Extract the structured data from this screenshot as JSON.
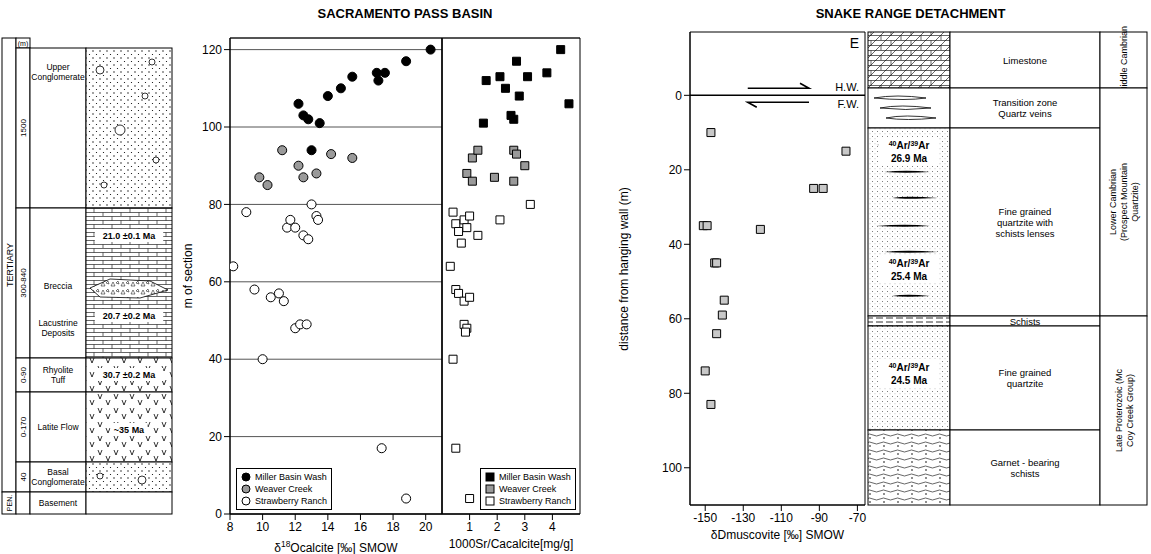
{
  "titles": {
    "left": "SACRAMENTO PASS BASIN",
    "right": "SNAKE RANGE DETACHMENT"
  },
  "stratigraphic_column": {
    "unit_label": "(m)",
    "eras": [
      "TERTIARY",
      "PEN."
    ],
    "units": [
      {
        "thickness": "1500",
        "name": "Upper Conglomerate"
      },
      {
        "thickness": "300-840",
        "name": "Lacustrine Deposits",
        "sub_units": [
          "Breccia"
        ],
        "ages": [
          "21.0 ±0.1 Ma",
          "20.7 ±0.2 Ma"
        ]
      },
      {
        "thickness": "0-90",
        "name": "Rhyolite Tuff",
        "ages": [
          "30.7 ±0.2 Ma"
        ]
      },
      {
        "thickness": "0-170",
        "name": "Latite Flow",
        "ages": [
          "~35 Ma"
        ]
      },
      {
        "thickness": "40",
        "name": "Basal Conglomerate"
      },
      {
        "name": "Basement"
      }
    ]
  },
  "chart_data": [
    {
      "type": "scatter",
      "xlabel": "δ18Ocalcite [‰] SMOW",
      "ylabel": "m of section",
      "xlim": [
        8,
        21
      ],
      "xticks": [
        8,
        10,
        12,
        14,
        16,
        18,
        20
      ],
      "ylim": [
        0,
        123
      ],
      "yticks": [
        0,
        20,
        40,
        60,
        80,
        100,
        120
      ],
      "grid": true,
      "legend": "lower left",
      "series": [
        {
          "name": "Miller Basin Wash",
          "color": "#000000",
          "marker": "circle",
          "x": [
            12.2,
            12.5,
            12.8,
            13.5,
            13.0,
            14.0,
            14.8,
            15.5,
            17.0,
            17.1,
            17.5,
            18.8,
            20.3
          ],
          "y": [
            106,
            103,
            102,
            101,
            94,
            108,
            110,
            113,
            114,
            112,
            114,
            117,
            120
          ]
        },
        {
          "name": "Weaver Creek",
          "color": "#9a9a9a",
          "marker": "circle",
          "x": [
            9.8,
            10.3,
            11.2,
            12.2,
            12.5,
            13.3,
            14.2,
            15.5
          ],
          "y": [
            87,
            85,
            94,
            90,
            87,
            88,
            93,
            92
          ]
        },
        {
          "name": "Strawberry Ranch",
          "color": "#ffffff",
          "marker": "circle",
          "x": [
            8.2,
            9.0,
            9.5,
            10.0,
            10.5,
            11.0,
            11.3,
            11.5,
            11.7,
            12.0,
            12.0,
            12.3,
            12.5,
            12.7,
            12.8,
            13.0,
            13.3,
            13.4,
            17.3,
            18.8
          ],
          "y": [
            64,
            78,
            58,
            40,
            56,
            57,
            55,
            74,
            76,
            74,
            48,
            49,
            72,
            49,
            71,
            80,
            77,
            76,
            17,
            4
          ]
        }
      ]
    },
    {
      "type": "scatter",
      "xlabel": "1000Sr/Cacalcite[mg/g]",
      "xlim": [
        0,
        5
      ],
      "xticks": [
        1,
        2,
        3,
        4
      ],
      "ylim": [
        0,
        123
      ],
      "yticks": [
        0,
        20,
        40,
        60,
        80,
        100,
        120
      ],
      "grid": true,
      "legend": "lower right",
      "tick_labels": "x",
      "series": [
        {
          "name": "Miller Basin Wash",
          "color": "#000000",
          "marker": "square",
          "x": [
            1.5,
            1.6,
            2.1,
            2.3,
            2.5,
            2.6,
            2.7,
            2.8,
            3.1,
            3.8,
            4.3,
            4.6
          ],
          "y": [
            101,
            112,
            113,
            110,
            103,
            102,
            117,
            108,
            113,
            114,
            120,
            106
          ]
        },
        {
          "name": "Weaver Creek",
          "color": "#9a9a9a",
          "marker": "square",
          "x": [
            0.9,
            1.1,
            1.1,
            1.3,
            1.9,
            2.6,
            2.6,
            2.7,
            3.0
          ],
          "y": [
            88,
            92,
            86,
            94,
            87,
            86,
            94,
            93,
            90
          ]
        },
        {
          "name": "Strawberry Ranch",
          "color": "#ffffff",
          "marker": "square",
          "x": [
            0.3,
            0.4,
            0.5,
            0.6,
            0.7,
            0.8,
            0.9,
            1.0,
            1.3,
            2.1,
            3.2,
            0.5,
            0.6,
            0.8,
            1.0,
            0.8,
            0.9,
            0.85,
            0.4,
            0.5,
            1.0
          ],
          "y": [
            64,
            78,
            75,
            73,
            70,
            76,
            74,
            77,
            72,
            76,
            80,
            58,
            57,
            55,
            56,
            49,
            48,
            47,
            40,
            17,
            4
          ]
        }
      ]
    },
    {
      "type": "scatter",
      "xlabel": "δDmuscovite [‰] SMOW",
      "ylabel": "distance from hanging wall (m)",
      "xlim": [
        -158,
        -66
      ],
      "xticks": [
        -150,
        -130,
        -110,
        -90,
        -70
      ],
      "ylim": [
        110,
        -17
      ],
      "yticks": [
        0,
        20,
        40,
        60,
        80,
        100
      ],
      "grid": false,
      "annotations": [
        {
          "text": "E"
        },
        {
          "text": "H.W.",
          "y": 0
        },
        {
          "text": "F.W.",
          "y": 0
        }
      ],
      "series": [
        {
          "color": "#c8c8c8",
          "marker": "square",
          "x": [
            -147,
            -76,
            -93,
            -88,
            -151,
            -149,
            -121,
            -145,
            -144,
            -140,
            -141,
            -144,
            -150,
            -147
          ],
          "y": [
            10,
            15,
            25,
            25,
            35,
            35,
            36,
            45,
            45,
            55,
            59,
            64,
            74,
            83
          ]
        }
      ]
    }
  ],
  "snake_column": {
    "groups": [
      {
        "label": "Middle Cambrian",
        "rows": [
          {
            "label": "Limestone"
          }
        ]
      },
      {
        "label": "Lower Cambrian (Prospect Mountain Quartzite)",
        "rows": [
          {
            "label": "Transition zone Quartz veins"
          },
          {
            "label": "Fine grained quartzite with schists lenses",
            "ages": [
              {
                "method": "40Ar/39Ar",
                "age": "26.9 Ma"
              },
              {
                "method": "40Ar/39Ar",
                "age": "25.4 Ma"
              }
            ]
          }
        ]
      },
      {
        "label": "Late Proterozoic (Mc Coy Creek Group)",
        "rows": [
          {
            "label": "Schists"
          },
          {
            "label": "Fine grained quartzite",
            "ages": [
              {
                "method": "40Ar/39Ar",
                "age": "24.5 Ma"
              }
            ]
          },
          {
            "label": "Garnet - bearing schists"
          }
        ]
      }
    ]
  }
}
